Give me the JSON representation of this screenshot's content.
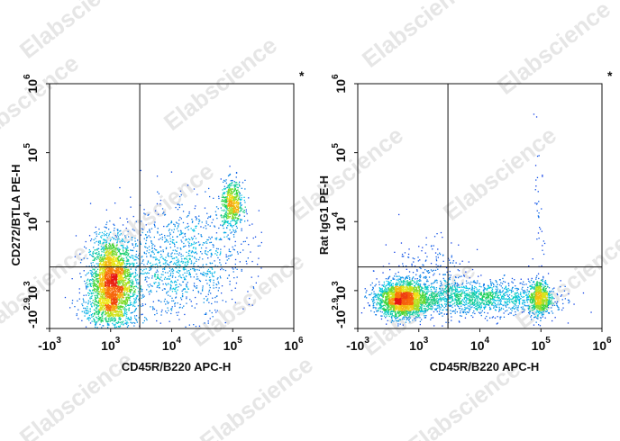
{
  "watermark": "Elabscience",
  "chart_data": [
    {
      "type": "scatter",
      "xlabel": "CD45R/B220 APC-H",
      "ylabel": "CD272/BTLA PE-H",
      "corner_mark": "*",
      "x_ticks": [
        {
          "base": "-10",
          "exp": "3"
        },
        {
          "base": "10",
          "exp": "3"
        },
        {
          "base": "10",
          "exp": "4"
        },
        {
          "base": "10",
          "exp": "5"
        },
        {
          "base": "10",
          "exp": "6"
        }
      ],
      "y_ticks": [
        {
          "base": "-10",
          "exp": "2.9"
        },
        {
          "base": "10",
          "exp": "3"
        },
        {
          "base": "10",
          "exp": "4"
        },
        {
          "base": "10",
          "exp": "5"
        },
        {
          "base": "10",
          "exp": "6"
        }
      ],
      "gate": {
        "x": 3000,
        "y": 2200
      },
      "populations": [
        {
          "x_center": 1000,
          "y_center": 1500,
          "density": "high"
        },
        {
          "x_center": 90000,
          "y_center": 18000,
          "density": "high"
        },
        {
          "x_center": 10000,
          "y_center": 2500,
          "density": "low"
        }
      ]
    },
    {
      "type": "scatter",
      "xlabel": "CD45R/B220 APC-H",
      "ylabel": "Rat IgG1 PE-H",
      "corner_mark": "*",
      "x_ticks": [
        {
          "base": "-10",
          "exp": "3"
        },
        {
          "base": "10",
          "exp": "3"
        },
        {
          "base": "10",
          "exp": "4"
        },
        {
          "base": "10",
          "exp": "5"
        },
        {
          "base": "10",
          "exp": "6"
        }
      ],
      "y_ticks": [
        {
          "base": "-10",
          "exp": "2.9"
        },
        {
          "base": "10",
          "exp": "3"
        },
        {
          "base": "10",
          "exp": "4"
        },
        {
          "base": "10",
          "exp": "5"
        },
        {
          "base": "10",
          "exp": "6"
        }
      ],
      "gate": {
        "x": 3000,
        "y": 2200
      },
      "populations": [
        {
          "x_center": 500,
          "y_center": 650,
          "density": "high"
        },
        {
          "x_center": 90000,
          "y_center": 650,
          "density": "high"
        },
        {
          "x_center": 10000,
          "y_center": 650,
          "density": "medium"
        }
      ]
    }
  ]
}
